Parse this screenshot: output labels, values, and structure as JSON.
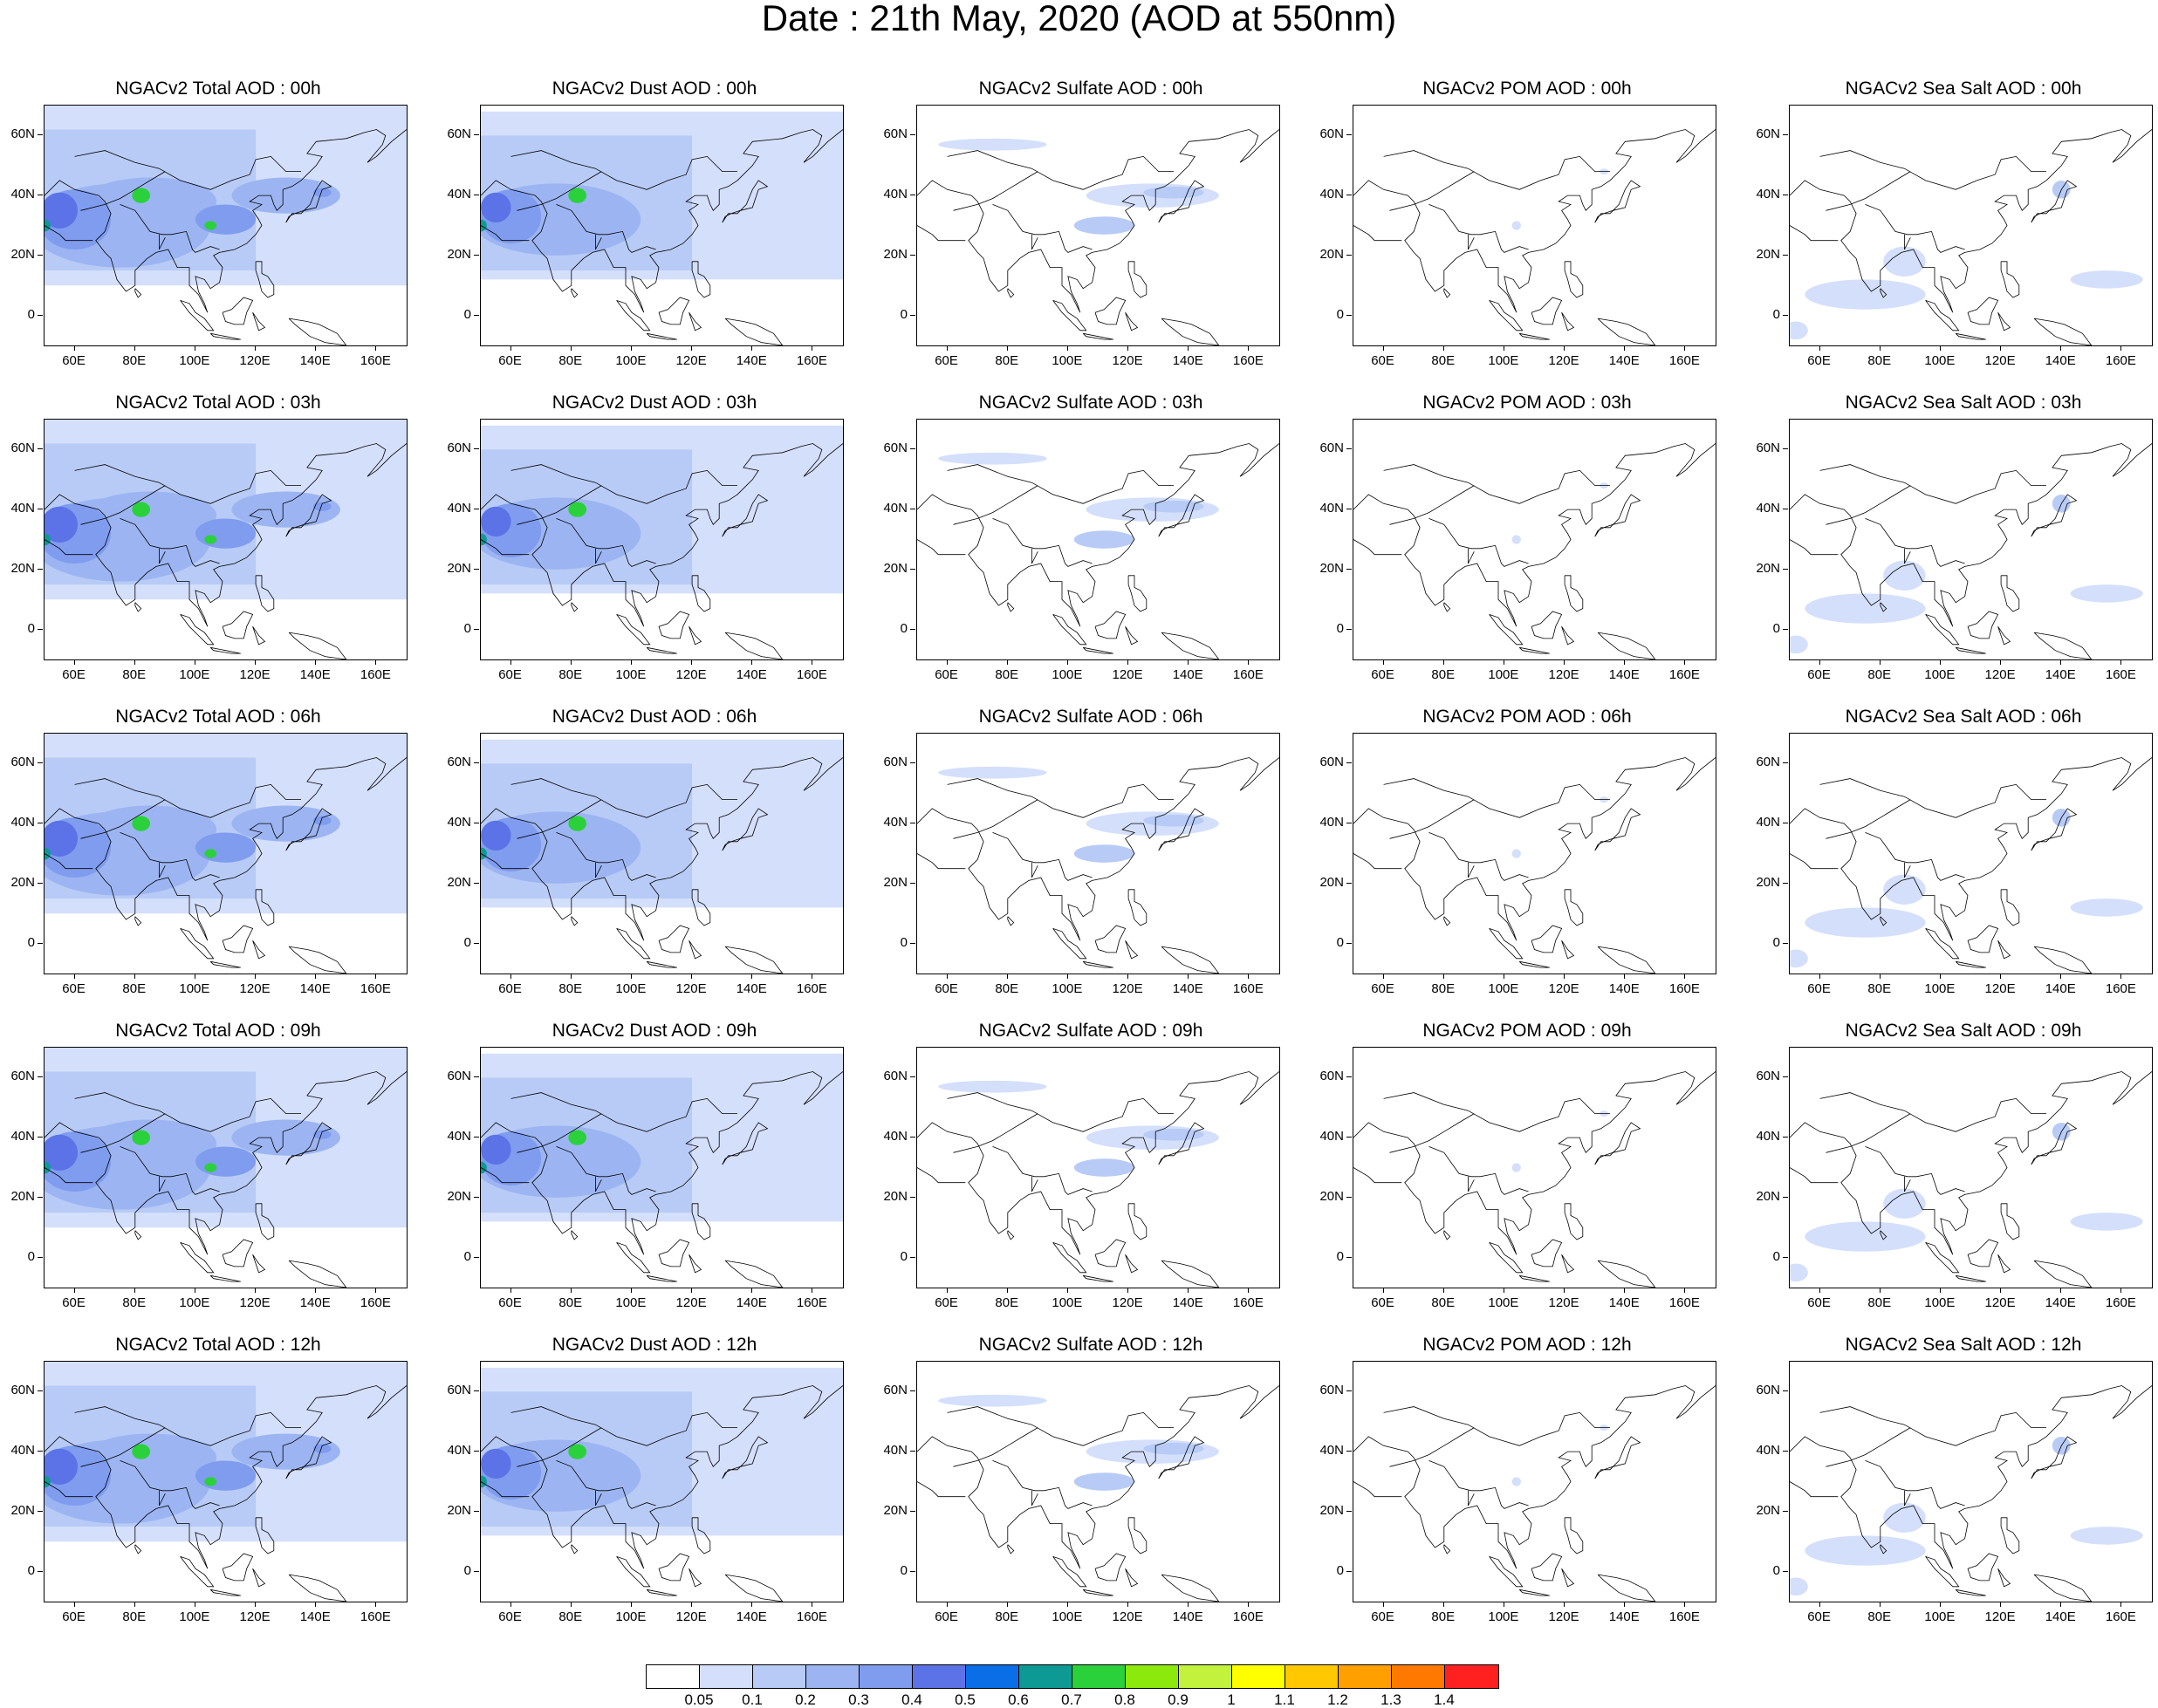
{
  "title": "Date : 21th May, 2020 (AOD at 550nm)",
  "lat_labels": [
    "60N",
    "40N",
    "20N",
    "0"
  ],
  "lon_labels": [
    "60E",
    "80E",
    "100E",
    "120E",
    "140E",
    "160E"
  ],
  "panels": [
    {
      "title": "NGACv2 Total AOD : 00h",
      "kind": "total"
    },
    {
      "title": "NGACv2 Dust AOD : 00h",
      "kind": "dust"
    },
    {
      "title": "NGACv2 Sulfate AOD : 00h",
      "kind": "sulfate"
    },
    {
      "title": "NGACv2 POM AOD : 00h",
      "kind": "pom"
    },
    {
      "title": "NGACv2 Sea Salt AOD : 00h",
      "kind": "seasalt"
    },
    {
      "title": "NGACv2 Total AOD : 03h",
      "kind": "total"
    },
    {
      "title": "NGACv2 Dust AOD : 03h",
      "kind": "dust"
    },
    {
      "title": "NGACv2 Sulfate AOD : 03h",
      "kind": "sulfate"
    },
    {
      "title": "NGACv2 POM AOD : 03h",
      "kind": "pom"
    },
    {
      "title": "NGACv2 Sea Salt AOD : 03h",
      "kind": "seasalt"
    },
    {
      "title": "NGACv2 Total AOD : 06h",
      "kind": "total"
    },
    {
      "title": "NGACv2 Dust AOD : 06h",
      "kind": "dust"
    },
    {
      "title": "NGACv2 Sulfate AOD : 06h",
      "kind": "sulfate"
    },
    {
      "title": "NGACv2 POM AOD : 06h",
      "kind": "pom"
    },
    {
      "title": "NGACv2 Sea Salt AOD : 06h",
      "kind": "seasalt"
    },
    {
      "title": "NGACv2 Total AOD : 09h",
      "kind": "total"
    },
    {
      "title": "NGACv2 Dust AOD : 09h",
      "kind": "dust"
    },
    {
      "title": "NGACv2 Sulfate AOD : 09h",
      "kind": "sulfate"
    },
    {
      "title": "NGACv2 POM AOD : 09h",
      "kind": "pom"
    },
    {
      "title": "NGACv2 Sea Salt  AOD : 09h",
      "kind": "seasalt"
    },
    {
      "title": "NGACv2 Total AOD  : 12h",
      "kind": "total"
    },
    {
      "title": "NGACv2 Dust AOD : 12h",
      "kind": "dust"
    },
    {
      "title": "NGACv2 Sulfate AOD : 12h",
      "kind": "sulfate"
    },
    {
      "title": "NGACv2 POM  AOD : 12h",
      "kind": "pom"
    },
    {
      "title": "NGACv2 Sea Salt  AOD : 12h",
      "kind": "seasalt"
    }
  ],
  "colorbar": {
    "labels": [
      "0.05",
      "0.1",
      "0.2",
      "0.3",
      "0.4",
      "0.5",
      "0.6",
      "0.7",
      "0.8",
      "0.9",
      "1",
      "1.1",
      "1.2",
      "1.3",
      "1.4"
    ],
    "colors": [
      "#ffffff",
      "#d4dffb",
      "#b8cbf6",
      "#9cb5f2",
      "#7f9cef",
      "#5b73e6",
      "#0a6ee6",
      "#0d9a94",
      "#2bd13b",
      "#8ce90c",
      "#c2f23c",
      "#ffff00",
      "#ffc800",
      "#ffa000",
      "#ff7800",
      "#ff2020"
    ]
  }
}
